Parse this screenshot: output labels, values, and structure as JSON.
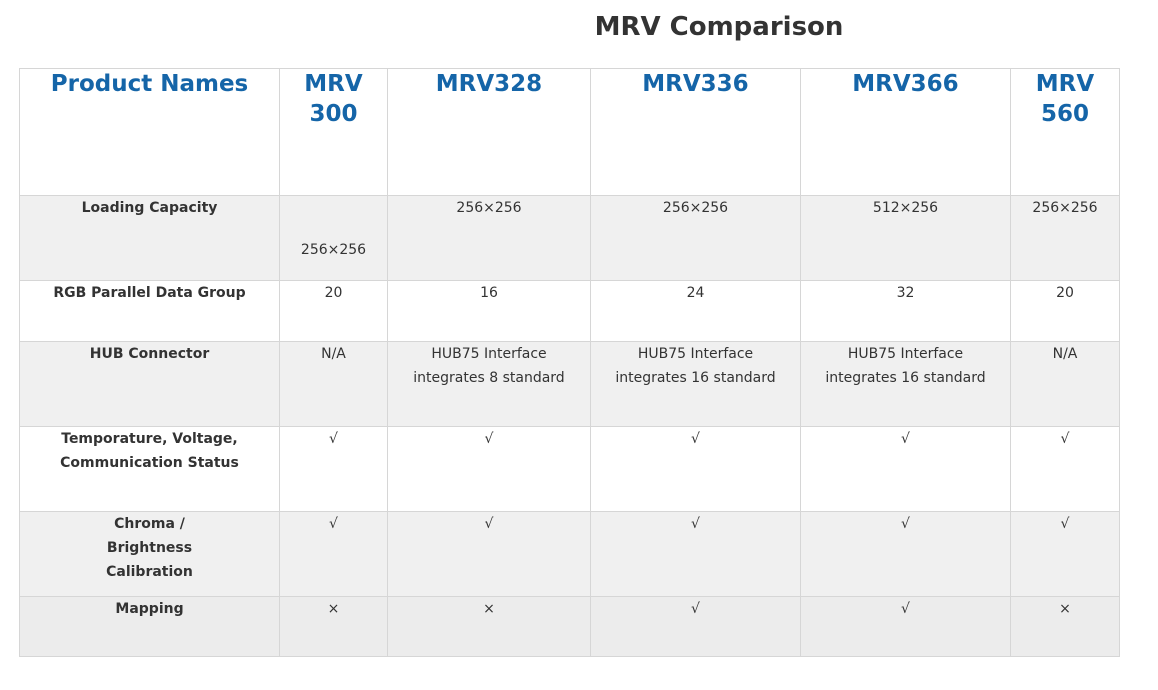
{
  "page": {
    "title": "MRV Comparison"
  },
  "table": {
    "header": {
      "corner": "Product Names",
      "products": [
        "MRV 300",
        "MRV328",
        "MRV336",
        "MRV366",
        "MRV 560"
      ]
    },
    "rows": [
      {
        "label": "Loading Capacity",
        "values": [
          "256×256",
          "256×256",
          "256×256",
          "512×256",
          "256×256"
        ]
      },
      {
        "label": "RGB Parallel Data Group",
        "values": [
          "20",
          "16",
          "24",
          "32",
          "20"
        ]
      },
      {
        "label": "HUB Connector",
        "values": [
          "N/A",
          "HUB75 Interface integrates 8 standard",
          "HUB75 Interface integrates 16 standard",
          "HUB75 Interface integrates 16 standard",
          "N/A"
        ]
      },
      {
        "label": "Temporature, Voltage, Communication Status",
        "values": [
          "√",
          "√",
          "√",
          "√",
          "√"
        ]
      },
      {
        "label": "Chroma / Brightness Calibration",
        "values": [
          "√",
          "√",
          "√",
          "√",
          "√"
        ]
      },
      {
        "label": "Mapping",
        "values": [
          "×",
          "×",
          "√",
          "√",
          "×"
        ]
      }
    ]
  }
}
